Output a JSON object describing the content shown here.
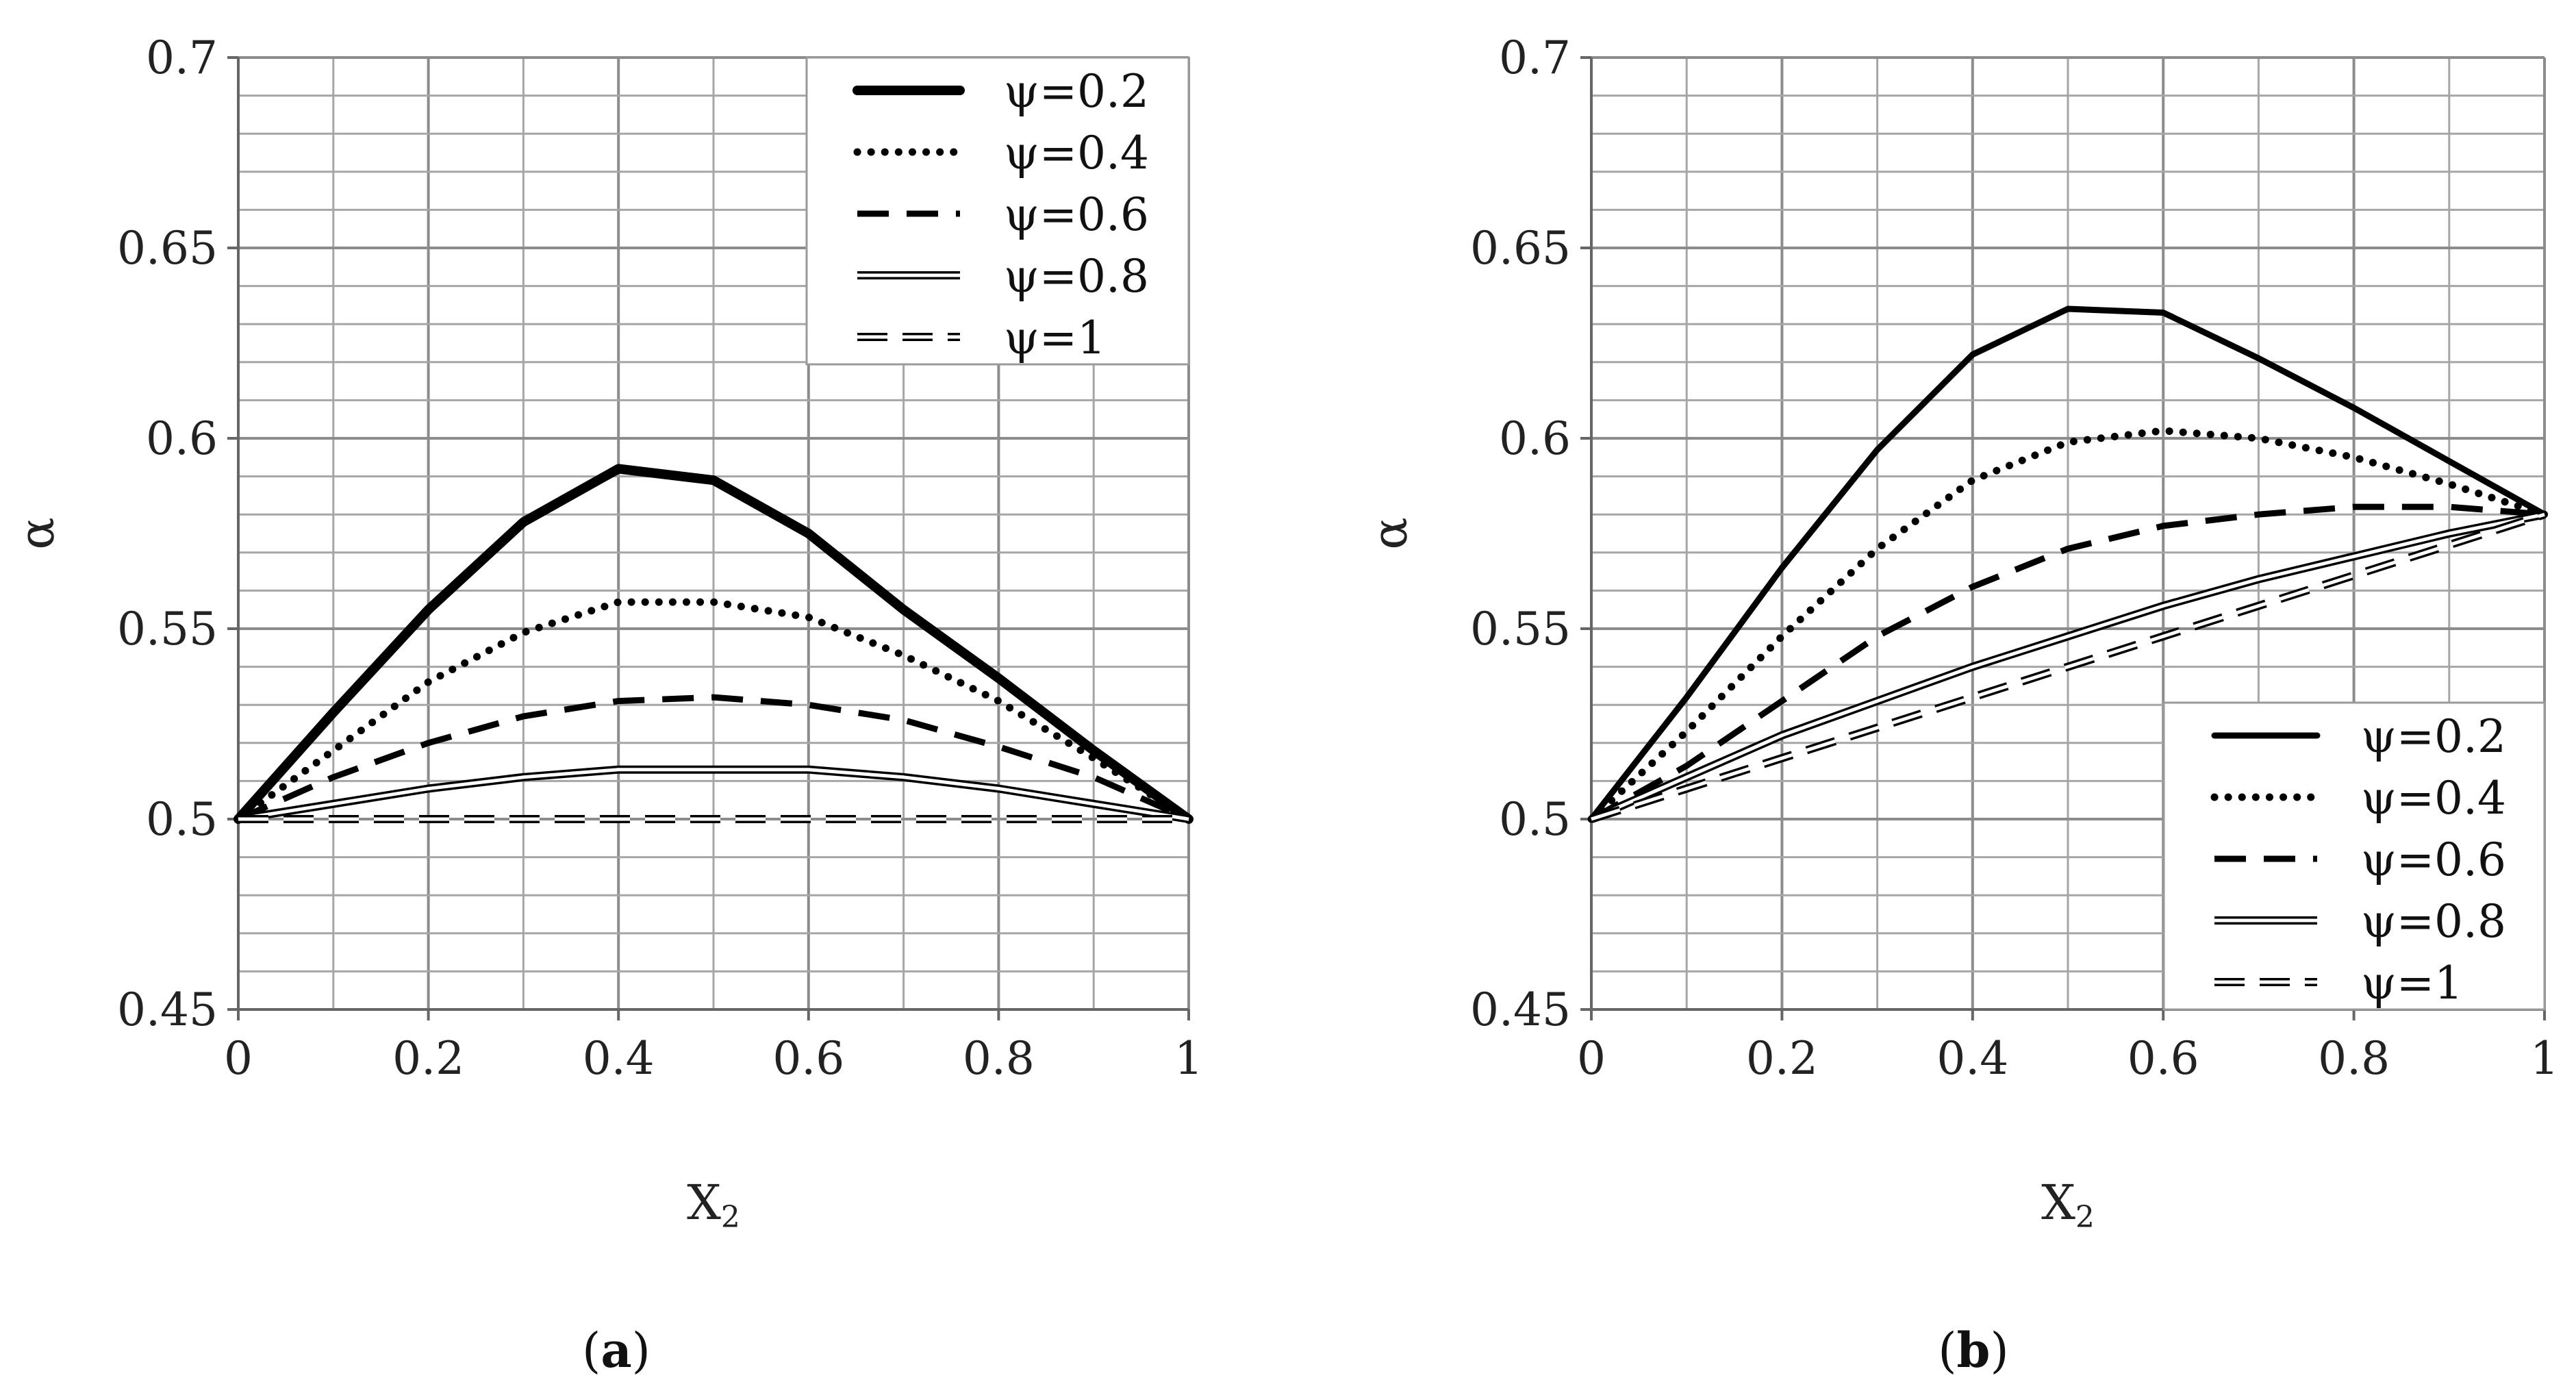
{
  "chart_data": [
    {
      "type": "line",
      "panel": "a",
      "caption": {
        "open": "(",
        "letter": "a",
        "close": ")"
      },
      "xlabel": "X",
      "xlabel_sub": "2",
      "ylabel": "α",
      "xlim": [
        0,
        1
      ],
      "ylim": [
        0.45,
        0.7
      ],
      "x_ticks": [
        "0",
        "0.2",
        "0.4",
        "0.6",
        "0.8",
        "1"
      ],
      "y_ticks": [
        "0.45",
        "0.5",
        "0.55",
        "0.6",
        "0.65",
        "0.7"
      ],
      "legend_position": "top-right",
      "x": [
        0,
        0.1,
        0.2,
        0.3,
        0.4,
        0.5,
        0.6,
        0.7,
        0.8,
        0.9,
        1.0
      ],
      "series": [
        {
          "name": "ψ=0.2",
          "style": "thick-solid",
          "values": [
            0.5,
            0.528,
            0.555,
            0.578,
            0.592,
            0.589,
            0.575,
            0.555,
            0.537,
            0.518,
            0.5
          ]
        },
        {
          "name": "ψ=0.4",
          "style": "dotted",
          "values": [
            0.5,
            0.518,
            0.536,
            0.549,
            0.557,
            0.557,
            0.553,
            0.543,
            0.531,
            0.516,
            0.5
          ]
        },
        {
          "name": "ψ=0.6",
          "style": "dashed",
          "values": [
            0.5,
            0.511,
            0.52,
            0.527,
            0.531,
            0.532,
            0.53,
            0.526,
            0.519,
            0.511,
            0.5
          ]
        },
        {
          "name": "ψ=0.8",
          "style": "double",
          "values": [
            0.5,
            0.504,
            0.508,
            0.511,
            0.513,
            0.513,
            0.513,
            0.511,
            0.508,
            0.504,
            0.5
          ]
        },
        {
          "name": "ψ=1",
          "style": "double-dashed",
          "values": [
            0.5,
            0.5,
            0.5,
            0.5,
            0.5,
            0.5,
            0.5,
            0.5,
            0.5,
            0.5,
            0.5
          ]
        }
      ]
    },
    {
      "type": "line",
      "panel": "b",
      "caption": {
        "open": "(",
        "letter": "b",
        "close": ")"
      },
      "xlabel": "X",
      "xlabel_sub": "2",
      "ylabel": "α",
      "xlim": [
        0,
        1
      ],
      "ylim": [
        0.45,
        0.7
      ],
      "x_ticks": [
        "0",
        "0.2",
        "0.4",
        "0.6",
        "0.8",
        "1"
      ],
      "y_ticks": [
        "0.45",
        "0.5",
        "0.55",
        "0.6",
        "0.65",
        "0.7"
      ],
      "legend_position": "bottom-right",
      "x": [
        0,
        0.1,
        0.2,
        0.3,
        0.4,
        0.5,
        0.6,
        0.7,
        0.8,
        0.9,
        1.0
      ],
      "series": [
        {
          "name": "ψ=0.2",
          "style": "solid",
          "values": [
            0.5,
            0.532,
            0.566,
            0.597,
            0.622,
            0.634,
            0.633,
            0.621,
            0.608,
            0.594,
            0.58
          ]
        },
        {
          "name": "ψ=0.4",
          "style": "dotted",
          "values": [
            0.5,
            0.523,
            0.548,
            0.571,
            0.589,
            0.599,
            0.602,
            0.6,
            0.595,
            0.588,
            0.58
          ]
        },
        {
          "name": "ψ=0.6",
          "style": "dashed",
          "values": [
            0.5,
            0.514,
            0.531,
            0.548,
            0.561,
            0.571,
            0.577,
            0.58,
            0.582,
            0.582,
            0.58
          ]
        },
        {
          "name": "ψ=0.8",
          "style": "double",
          "values": [
            0.5,
            0.511,
            0.522,
            0.531,
            0.54,
            0.548,
            0.556,
            0.563,
            0.569,
            0.575,
            0.58
          ]
        },
        {
          "name": "ψ=1",
          "style": "double-dashed",
          "values": [
            0.5,
            0.508,
            0.516,
            0.524,
            0.532,
            0.54,
            0.548,
            0.556,
            0.564,
            0.572,
            0.58
          ]
        }
      ]
    }
  ]
}
